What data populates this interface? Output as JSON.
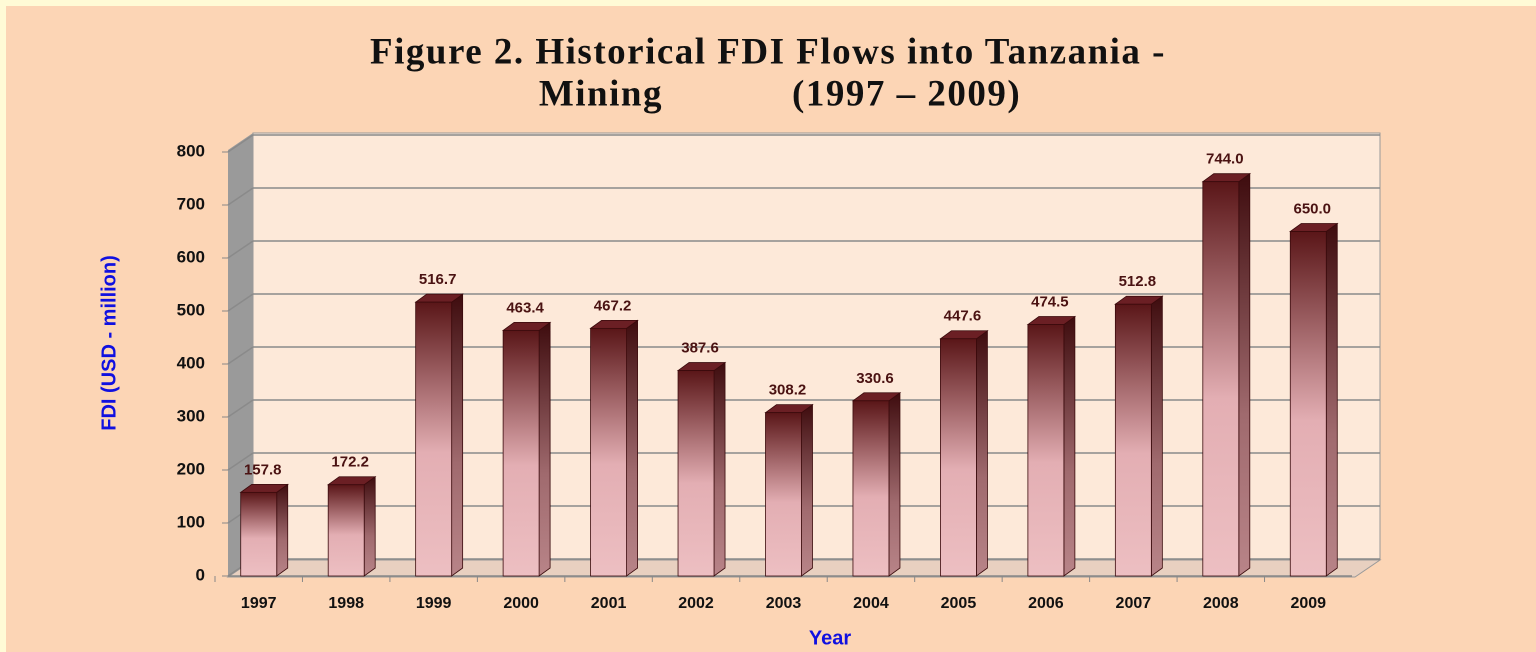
{
  "chart_data": {
    "type": "bar",
    "title": [
      "Figure 2. Historical FDI Flows into Tanzania -",
      "Mining            (1997 – 2009)"
    ],
    "x_label": "Year",
    "y_label": "FDI (USD - million)",
    "categories": [
      "1997",
      "1998",
      "1999",
      "2000",
      "2001",
      "2002",
      "2003",
      "2004",
      "2005",
      "2006",
      "2007",
      "2008",
      "2009"
    ],
    "values": [
      157.8,
      172.2,
      516.7,
      463.4,
      467.2,
      387.6,
      308.2,
      330.6,
      447.6,
      474.5,
      512.8,
      744.0,
      650.0
    ],
    "value_labels": [
      "157.8",
      "172.2",
      "516.7",
      "463.4",
      "467.2",
      "387.6",
      "308.2",
      "330.6",
      "447.6",
      "474.5",
      "512.8",
      "744.0",
      "650.0"
    ],
    "color": "#6b1f24",
    "ylim": [
      0,
      800
    ],
    "yticks": [
      0,
      100,
      200,
      300,
      400,
      500,
      600,
      700,
      800
    ],
    "grid": true
  }
}
